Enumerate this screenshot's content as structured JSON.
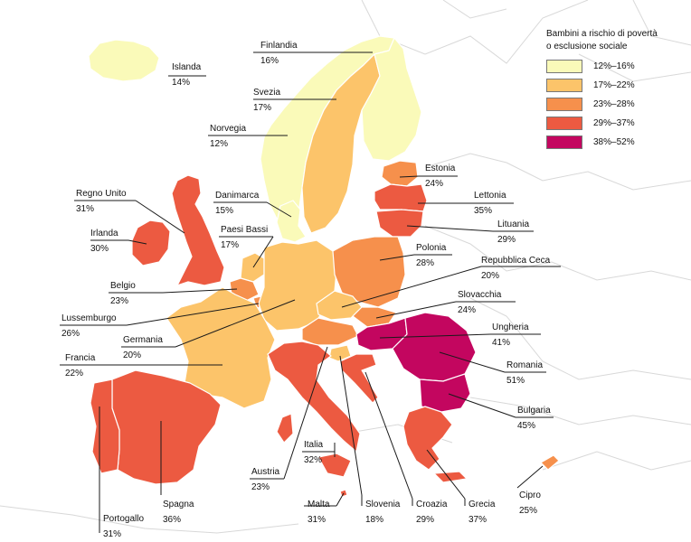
{
  "legend": {
    "title_line1": "Bambini a rischio di povertà",
    "title_line2": "o esclusione sociale",
    "classes": [
      {
        "label": "12%–16%",
        "color": "#fafab9"
      },
      {
        "label": "17%–22%",
        "color": "#fcc46a"
      },
      {
        "label": "23%–28%",
        "color": "#f6904c"
      },
      {
        "label": "29%–37%",
        "color": "#ec5a41"
      },
      {
        "label": "38%–52%",
        "color": "#c3065f"
      }
    ]
  },
  "countries": [
    {
      "id": "islanda",
      "name": "Islanda",
      "value": "14%",
      "class": 0
    },
    {
      "id": "finlandia",
      "name": "Finlandia",
      "value": "16%",
      "class": 0
    },
    {
      "id": "svezia",
      "name": "Svezia",
      "value": "17%",
      "class": 1
    },
    {
      "id": "norvegia",
      "name": "Norvegia",
      "value": "12%",
      "class": 0
    },
    {
      "id": "estonia",
      "name": "Estonia",
      "value": "24%",
      "class": 2
    },
    {
      "id": "lettonia",
      "name": "Lettonia",
      "value": "35%",
      "class": 3
    },
    {
      "id": "lituania",
      "name": "Lituania",
      "value": "29%",
      "class": 3
    },
    {
      "id": "regno-unito",
      "name": "Regno Unito",
      "value": "31%",
      "class": 3
    },
    {
      "id": "danimarca",
      "name": "Danimarca",
      "value": "15%",
      "class": 0
    },
    {
      "id": "irlanda",
      "name": "Irlanda",
      "value": "30%",
      "class": 3
    },
    {
      "id": "paesi-bassi",
      "name": "Paesi Bassi",
      "value": "17%",
      "class": 1
    },
    {
      "id": "polonia",
      "name": "Polonia",
      "value": "28%",
      "class": 2
    },
    {
      "id": "repubblica-ceca",
      "name": "Repubblica Ceca",
      "value": "20%",
      "class": 1
    },
    {
      "id": "belgio",
      "name": "Belgio",
      "value": "23%",
      "class": 2
    },
    {
      "id": "slovacchia",
      "name": "Slovacchia",
      "value": "24%",
      "class": 2
    },
    {
      "id": "lussemburgo",
      "name": "Lussemburgo",
      "value": "26%",
      "class": 2
    },
    {
      "id": "ungheria",
      "name": "Ungheria",
      "value": "41%",
      "class": 4
    },
    {
      "id": "germania",
      "name": "Germania",
      "value": "20%",
      "class": 1
    },
    {
      "id": "francia",
      "name": "Francia",
      "value": "22%",
      "class": 1
    },
    {
      "id": "romania",
      "name": "Romania",
      "value": "51%",
      "class": 4
    },
    {
      "id": "bulgaria",
      "name": "Bulgaria",
      "value": "45%",
      "class": 4
    },
    {
      "id": "italia",
      "name": "Italia",
      "value": "32%",
      "class": 3
    },
    {
      "id": "austria",
      "name": "Austria",
      "value": "23%",
      "class": 2
    },
    {
      "id": "cipro",
      "name": "Cipro",
      "value": "25%",
      "class": 2
    },
    {
      "id": "portogallo",
      "name": "Portogallo",
      "value": "31%",
      "class": 3
    },
    {
      "id": "spagna",
      "name": "Spagna",
      "value": "36%",
      "class": 3
    },
    {
      "id": "malta",
      "name": "Malta",
      "value": "31%",
      "class": 3
    },
    {
      "id": "slovenia",
      "name": "Slovenia",
      "value": "18%",
      "class": 1
    },
    {
      "id": "croazia",
      "name": "Croazia",
      "value": "29%",
      "class": 3
    },
    {
      "id": "grecia",
      "name": "Grecia",
      "value": "37%",
      "class": 3
    }
  ]
}
